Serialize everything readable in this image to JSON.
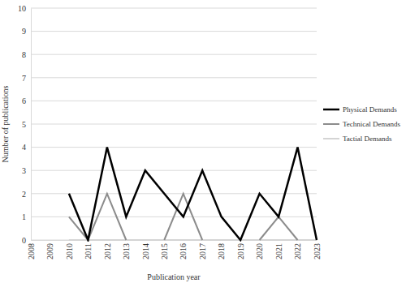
{
  "chart_data": {
    "type": "line",
    "x_label": "Publication year",
    "y_label": "Number of publications",
    "categories": [
      "2008",
      "2009",
      "2010",
      "2011",
      "2012",
      "2013",
      "2014",
      "2015",
      "2016",
      "2017",
      "2018",
      "2019",
      "2020",
      "2021",
      "2022",
      "2023"
    ],
    "series": [
      {
        "name": "Physical Demands",
        "color": "#000000",
        "values": [
          null,
          null,
          2,
          0,
          4,
          1,
          3,
          2,
          1,
          3,
          1,
          0,
          2,
          1,
          4,
          0
        ]
      },
      {
        "name": "Technical Demands",
        "color": "#8c8c8c",
        "values": [
          null,
          null,
          1,
          0,
          2,
          0,
          null,
          0,
          2,
          0,
          null,
          null,
          0,
          1,
          0,
          null
        ]
      },
      {
        "name": "Tactial Demands",
        "color": "#d4d4d4",
        "values": [
          null,
          null,
          0,
          0,
          0,
          0,
          0,
          0,
          0,
          0,
          0,
          0,
          0,
          0,
          0,
          0
        ]
      }
    ],
    "ylim": [
      0,
      10
    ],
    "yticks": [
      0,
      1,
      2,
      3,
      4,
      5,
      6,
      7,
      8,
      9,
      10
    ],
    "grid": true,
    "legend": "right"
  }
}
